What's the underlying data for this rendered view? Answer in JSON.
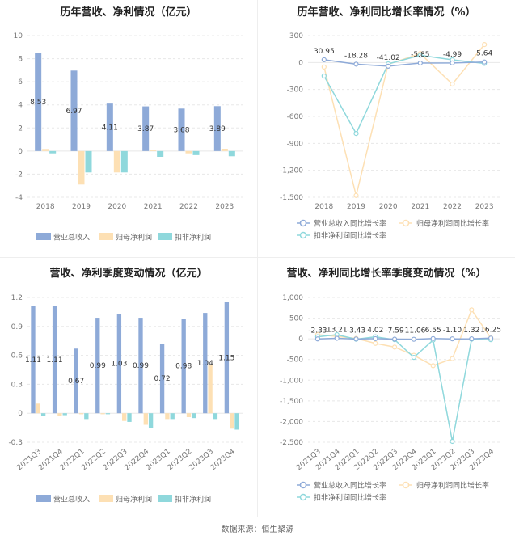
{
  "source_text": "数据来源：恒生聚源",
  "colors": {
    "revenue": "#8eaad8",
    "net_profit": "#fde0b4",
    "deducted_profit": "#8fd8dc",
    "grid": "#e8e8e8",
    "axis_text": "#777777"
  },
  "chart_data": [
    {
      "id": "annual_values",
      "type": "bar",
      "title": "历年营收、净利情况（亿元）",
      "categories": [
        "2018",
        "2019",
        "2020",
        "2021",
        "2022",
        "2023"
      ],
      "series": [
        {
          "name": "营业总收入",
          "values": [
            8.53,
            6.97,
            4.11,
            3.87,
            3.68,
            3.89
          ]
        },
        {
          "name": "归母净利润",
          "values": [
            0.18,
            -2.9,
            -1.85,
            0.12,
            -0.2,
            0.2
          ]
        },
        {
          "name": "扣非净利润",
          "values": [
            -0.2,
            -1.85,
            -1.85,
            -0.5,
            -0.35,
            -0.45
          ]
        }
      ],
      "data_labels": [
        "8.53",
        "6.97",
        "4.11",
        "3.87",
        "3.68",
        "3.89"
      ],
      "ylim": [
        -4,
        10
      ],
      "yticks": [
        -4,
        -2,
        0,
        2,
        4,
        6,
        8,
        10
      ],
      "legend_position": "bottom"
    },
    {
      "id": "annual_growth",
      "type": "line",
      "title": "历年营收、净利同比增长率情况（%）",
      "categories": [
        "2018",
        "2019",
        "2020",
        "2021",
        "2022",
        "2023"
      ],
      "series": [
        {
          "name": "营业总收入同比增长率",
          "values": [
            30.95,
            -18.28,
            -41.02,
            -5.85,
            -4.99,
            5.64
          ]
        },
        {
          "name": "归母净利润同比增长率",
          "values": [
            -50,
            -1480,
            -20,
            100,
            -240,
            200
          ]
        },
        {
          "name": "扣非净利润同比增长率",
          "values": [
            -150,
            -790,
            -15,
            80,
            30,
            -10
          ]
        }
      ],
      "data_labels": [
        "30.95",
        "-18.28",
        "-41.02",
        "-5.85",
        "-4.99",
        "5.64"
      ],
      "ylim": [
        -1500,
        300
      ],
      "yticks": [
        -1500,
        -1200,
        -900,
        -600,
        -300,
        0,
        300
      ],
      "ytick_labels": [
        "-1,500",
        "-1,200",
        "-900",
        "-600",
        "-300",
        "0",
        "300"
      ],
      "legend_position": "bottom"
    },
    {
      "id": "quarterly_values",
      "type": "bar",
      "title": "营收、净利季度变动情况（亿元）",
      "categories": [
        "2021Q3",
        "2021Q4",
        "2022Q1",
        "2022Q2",
        "2022Q3",
        "2022Q4",
        "2023Q1",
        "2023Q2",
        "2023Q3",
        "2023Q4"
      ],
      "series": [
        {
          "name": "营业总收入",
          "values": [
            1.11,
            1.11,
            0.67,
            0.99,
            1.03,
            0.99,
            0.72,
            0.98,
            1.04,
            1.15
          ]
        },
        {
          "name": "归母净利润",
          "values": [
            0.1,
            -0.03,
            -0.01,
            -0.01,
            -0.08,
            -0.12,
            -0.06,
            -0.04,
            0.5,
            -0.16
          ]
        },
        {
          "name": "扣非净利润",
          "values": [
            -0.03,
            -0.02,
            -0.06,
            -0.01,
            -0.09,
            -0.15,
            -0.06,
            -0.05,
            -0.06,
            -0.17
          ]
        }
      ],
      "data_labels": [
        "1.11",
        "1.11",
        "0.67",
        "0.99",
        "1.03",
        "0.99",
        "0.72",
        "0.98",
        "1.04",
        "1.15"
      ],
      "ylim": [
        -0.3,
        1.2
      ],
      "yticks": [
        -0.3,
        0,
        0.3,
        0.6,
        0.9,
        1.2
      ],
      "legend_position": "bottom"
    },
    {
      "id": "quarterly_growth",
      "type": "line",
      "title": "营收、净利同比增长率季度变动情况（%）",
      "categories": [
        "2021Q3",
        "2021Q4",
        "2022Q1",
        "2022Q2",
        "2022Q3",
        "2022Q4",
        "2023Q1",
        "2023Q2",
        "2023Q3",
        "2023Q4"
      ],
      "series": [
        {
          "name": "营业总收入同比增长率",
          "values": [
            -2.33,
            13.21,
            -3.43,
            4.02,
            -7.59,
            -11.06,
            6.55,
            -1.1,
            1.32,
            16.25
          ]
        },
        {
          "name": "归母净利润同比增长率",
          "values": [
            100,
            60,
            10,
            -110,
            -200,
            -400,
            -650,
            -480,
            700,
            20
          ]
        },
        {
          "name": "扣非净利润同比增长率",
          "values": [
            50,
            100,
            -10,
            50,
            -20,
            -450,
            -30,
            -2480,
            -10,
            -20
          ]
        }
      ],
      "data_labels": [
        "-2.33",
        "13.21",
        "-3.43",
        "4.02",
        "-7.59",
        "-11.06",
        "6.55",
        "-1.10",
        "1.32",
        "16.25"
      ],
      "ylim": [
        -2500,
        1000
      ],
      "yticks": [
        -2500,
        -2000,
        -1500,
        -1000,
        -500,
        0,
        500,
        1000
      ],
      "ytick_labels": [
        "-2,500",
        "-2,000",
        "-1,500",
        "-1,000",
        "-500",
        "0",
        "500",
        "1,000"
      ],
      "legend_position": "bottom"
    }
  ]
}
